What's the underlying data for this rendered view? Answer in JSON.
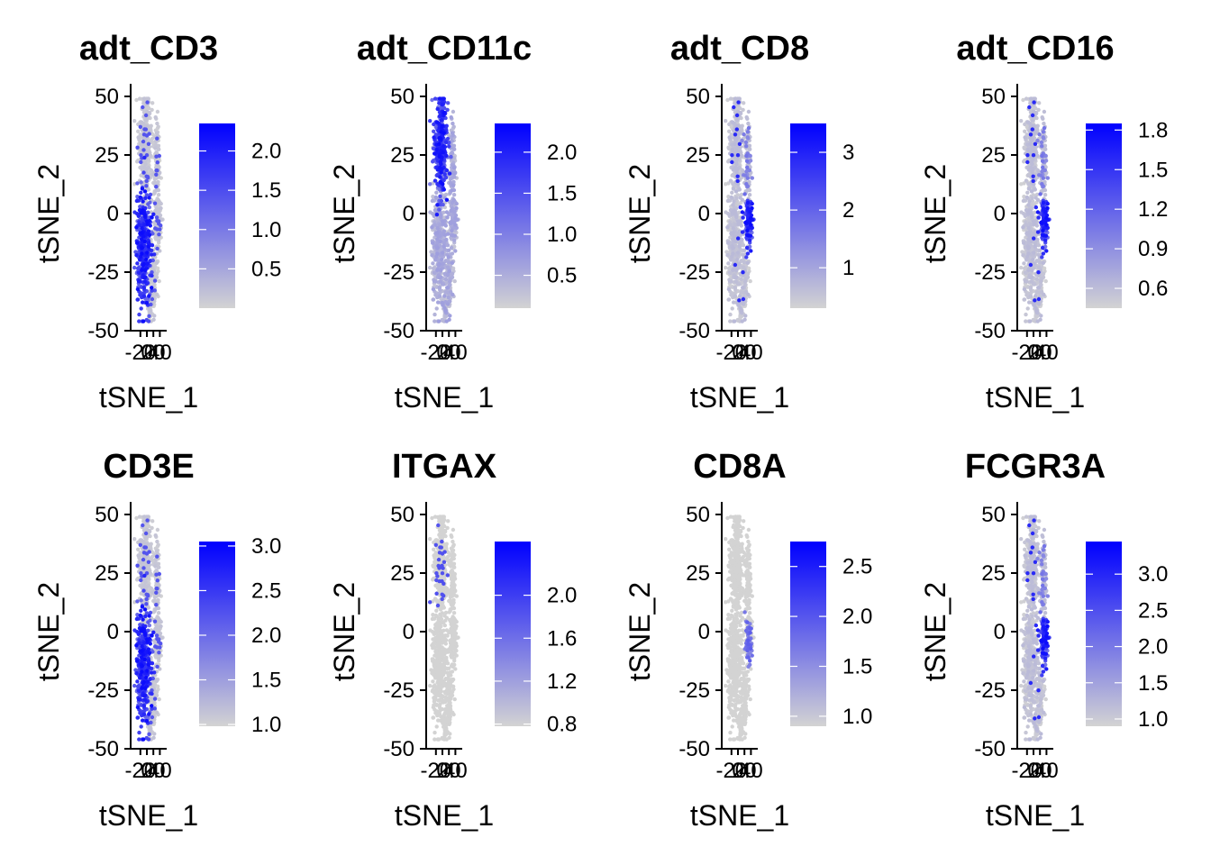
{
  "figure": {
    "background": "#FFFFFF",
    "color_low": "#D3D3D3",
    "color_high": "#0000FF"
  },
  "chart_data": [
    {
      "type": "scatter",
      "title": "adt_CD3",
      "xlabel": "tSNE_1",
      "ylabel": "tSNE_2",
      "yticks": [
        "50",
        "25",
        "0",
        "-25",
        "-50"
      ],
      "xticks": [
        "-20",
        "0",
        "20",
        "40"
      ],
      "ylim": [
        -50,
        50
      ],
      "xlim": [
        -30,
        45
      ],
      "colorbar": {
        "ticks": [
          0.5,
          1.0,
          1.5,
          2.0
        ],
        "tick_labels": [
          "0.5",
          "1.0",
          "1.5",
          "2.0"
        ],
        "min": 0.0,
        "max": 2.35
      },
      "high_region": "lower-left"
    },
    {
      "type": "scatter",
      "title": "adt_CD11c",
      "xlabel": "tSNE_1",
      "ylabel": "tSNE_2",
      "yticks": [
        "50",
        "25",
        "0",
        "-25",
        "-50"
      ],
      "xticks": [
        "-20",
        "0",
        "20",
        "40"
      ],
      "ylim": [
        -50,
        50
      ],
      "xlim": [
        -30,
        45
      ],
      "colorbar": {
        "ticks": [
          0.5,
          1.0,
          1.5,
          2.0
        ],
        "tick_labels": [
          "0.5",
          "1.0",
          "1.5",
          "2.0"
        ],
        "min": 0.1,
        "max": 2.35
      },
      "high_region": "upper-left"
    },
    {
      "type": "scatter",
      "title": "adt_CD8",
      "xlabel": "tSNE_1",
      "ylabel": "tSNE_2",
      "yticks": [
        "50",
        "25",
        "0",
        "-25",
        "-50"
      ],
      "xticks": [
        "-20",
        "0",
        "20",
        "40"
      ],
      "ylim": [
        -50,
        50
      ],
      "xlim": [
        -30,
        45
      ],
      "colorbar": {
        "ticks": [
          1,
          2,
          3
        ],
        "tick_labels": [
          "1",
          "2",
          "3"
        ],
        "min": 0.3,
        "max": 3.5
      },
      "high_region": "middle-right"
    },
    {
      "type": "scatter",
      "title": "adt_CD16",
      "xlabel": "tSNE_1",
      "ylabel": "tSNE_2",
      "yticks": [
        "50",
        "25",
        "0",
        "-25",
        "-50"
      ],
      "xticks": [
        "-20",
        "0",
        "20",
        "40"
      ],
      "ylim": [
        -50,
        50
      ],
      "xlim": [
        -30,
        45
      ],
      "colorbar": {
        "ticks": [
          0.6,
          0.9,
          1.2,
          1.5,
          1.8
        ],
        "tick_labels": [
          "0.6",
          "0.9",
          "1.2",
          "1.5",
          "1.8"
        ],
        "min": 0.45,
        "max": 1.85
      },
      "high_region": "middle-right"
    },
    {
      "type": "scatter",
      "title": "CD3E",
      "xlabel": "tSNE_1",
      "ylabel": "tSNE_2",
      "yticks": [
        "50",
        "25",
        "0",
        "-25",
        "-50"
      ],
      "xticks": [
        "-20",
        "0",
        "20",
        "40"
      ],
      "ylim": [
        -50,
        50
      ],
      "xlim": [
        -30,
        45
      ],
      "colorbar": {
        "ticks": [
          1.0,
          1.5,
          2.0,
          2.5,
          3.0
        ],
        "tick_labels": [
          "1.0",
          "1.5",
          "2.0",
          "2.5",
          "3.0"
        ],
        "min": 0.98,
        "max": 3.05
      },
      "high_region": "lower-left"
    },
    {
      "type": "scatter",
      "title": "ITGAX",
      "xlabel": "tSNE_1",
      "ylabel": "tSNE_2",
      "yticks": [
        "50",
        "25",
        "0",
        "-25",
        "-50"
      ],
      "xticks": [
        "-20",
        "0",
        "20",
        "40"
      ],
      "ylim": [
        -50,
        50
      ],
      "xlim": [
        -30,
        45
      ],
      "colorbar": {
        "ticks": [
          0.8,
          1.2,
          1.6,
          2.0
        ],
        "tick_labels": [
          "0.8",
          "1.2",
          "1.6",
          "2.0"
        ],
        "min": 0.78,
        "max": 2.5
      },
      "high_region": "upper-left-sparse"
    },
    {
      "type": "scatter",
      "title": "CD8A",
      "xlabel": "tSNE_1",
      "ylabel": "tSNE_2",
      "yticks": [
        "50",
        "25",
        "0",
        "-25",
        "-50"
      ],
      "xticks": [
        "-20",
        "0",
        "20",
        "40"
      ],
      "ylim": [
        -50,
        50
      ],
      "xlim": [
        -30,
        45
      ],
      "colorbar": {
        "ticks": [
          1.0,
          1.5,
          2.0,
          2.5
        ],
        "tick_labels": [
          "1.0",
          "1.5",
          "2.0",
          "2.5"
        ],
        "min": 0.9,
        "max": 2.75
      },
      "high_region": "middle-right-sparse"
    },
    {
      "type": "scatter",
      "title": "FCGR3A",
      "xlabel": "tSNE_1",
      "ylabel": "tSNE_2",
      "yticks": [
        "50",
        "25",
        "0",
        "-25",
        "-50"
      ],
      "xticks": [
        "-20",
        "0",
        "20",
        "40"
      ],
      "ylim": [
        -50,
        50
      ],
      "xlim": [
        -30,
        45
      ],
      "colorbar": {
        "ticks": [
          1.0,
          1.5,
          2.0,
          2.5,
          3.0
        ],
        "tick_labels": [
          "1.0",
          "1.5",
          "2.0",
          "2.5",
          "3.0"
        ],
        "min": 0.9,
        "max": 3.45
      },
      "high_region": "middle-right"
    }
  ]
}
